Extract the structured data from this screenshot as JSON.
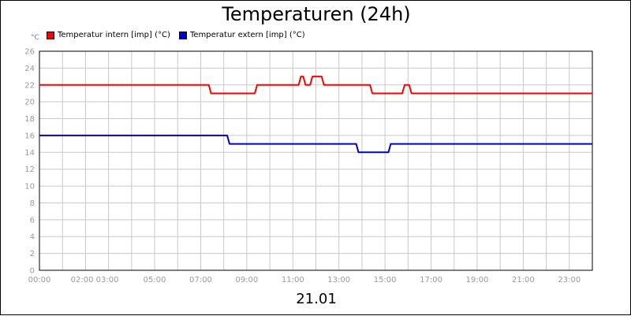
{
  "chart_data": {
    "type": "line",
    "title": "Temperaturen (24h)",
    "ylabel": "°C",
    "xlabel": "21.01",
    "ylim": [
      0,
      26
    ],
    "xlim": [
      0,
      24
    ],
    "yticks": [
      0,
      2,
      4,
      6,
      8,
      10,
      12,
      14,
      16,
      18,
      20,
      22,
      24,
      26
    ],
    "xticks": [
      {
        "x": 0,
        "label": "00:00"
      },
      {
        "x": 2.4,
        "label": "02:00 03:00"
      },
      {
        "x": 5,
        "label": "05:00"
      },
      {
        "x": 7,
        "label": "07:00"
      },
      {
        "x": 9,
        "label": "09:00"
      },
      {
        "x": 11,
        "label": "11:00"
      },
      {
        "x": 13,
        "label": "13:00"
      },
      {
        "x": 15,
        "label": "15:00"
      },
      {
        "x": 17,
        "label": "17:00"
      },
      {
        "x": 19,
        "label": "19:00"
      },
      {
        "x": 21,
        "label": "21:00"
      },
      {
        "x": 23,
        "label": "23:00"
      }
    ],
    "grid": true,
    "legend_position": "top-left",
    "series": [
      {
        "name": "Temperatur intern [imp] (°C)",
        "color": "#ff0000",
        "points": [
          [
            0,
            22
          ],
          [
            7.35,
            22
          ],
          [
            7.45,
            21
          ],
          [
            9.35,
            21
          ],
          [
            9.45,
            22
          ],
          [
            11.25,
            22
          ],
          [
            11.35,
            23
          ],
          [
            11.45,
            23
          ],
          [
            11.55,
            22
          ],
          [
            11.75,
            22
          ],
          [
            11.85,
            23
          ],
          [
            12.25,
            23
          ],
          [
            12.35,
            22
          ],
          [
            14.35,
            22
          ],
          [
            14.45,
            21
          ],
          [
            15.75,
            21
          ],
          [
            15.85,
            22
          ],
          [
            16.05,
            22
          ],
          [
            16.15,
            21
          ],
          [
            24,
            21
          ]
        ]
      },
      {
        "name": "Temperatur extern [imp] (°C)",
        "color": "#0000cc",
        "points": [
          [
            0,
            16
          ],
          [
            8.15,
            16
          ],
          [
            8.25,
            15
          ],
          [
            13.75,
            15
          ],
          [
            13.85,
            14
          ],
          [
            15.15,
            14
          ],
          [
            15.25,
            15
          ],
          [
            24,
            15
          ]
        ]
      }
    ]
  }
}
